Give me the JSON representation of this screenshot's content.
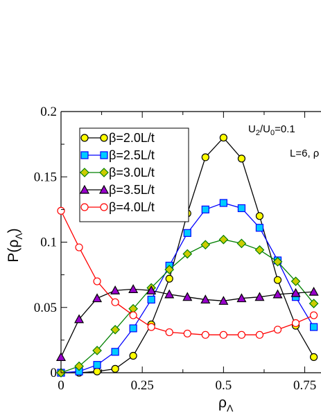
{
  "chart_data": {
    "type": "line",
    "xlabel": "ρΛ",
    "ylabel": "P(ρΛ)",
    "xlim": [
      0,
      0.8
    ],
    "ylim": [
      0,
      0.2
    ],
    "x_ticks": [
      "0",
      "0.25",
      "0.5",
      "0.75"
    ],
    "y_ticks": [
      "0",
      "0.05",
      "0.1",
      "0.15",
      "0.2"
    ],
    "annotations": [
      "U2/U0=0.1",
      "L=6, ρ"
    ],
    "legend_position": "top-left",
    "x": [
      0,
      0.0556,
      0.1111,
      0.1667,
      0.2222,
      0.2778,
      0.3333,
      0.3889,
      0.4444,
      0.5,
      0.5556,
      0.6111,
      0.6667,
      0.7222,
      0.7778
    ],
    "series": [
      {
        "name": "β=2.0L/t",
        "marker": "circle",
        "color": "#000000",
        "fill": "#ffff00",
        "values": [
          0.0,
          0.0,
          0.001,
          0.003,
          0.013,
          0.037,
          0.072,
          0.122,
          0.165,
          0.18,
          0.164,
          0.12,
          0.071,
          0.036,
          0.012
        ]
      },
      {
        "name": "β=2.5L/t",
        "marker": "square",
        "color": "#0000ff",
        "fill": "#00ccff",
        "values": [
          0.0,
          0.001,
          0.006,
          0.016,
          0.034,
          0.056,
          0.082,
          0.107,
          0.125,
          0.13,
          0.126,
          0.111,
          0.086,
          0.058,
          0.035
        ]
      },
      {
        "name": "β=3.0L/t",
        "marker": "diamond",
        "color": "#008000",
        "fill": "#cccc00",
        "values": [
          0.0,
          0.005,
          0.017,
          0.033,
          0.049,
          0.065,
          0.079,
          0.091,
          0.098,
          0.102,
          0.099,
          0.094,
          0.085,
          0.07,
          0.053
        ]
      },
      {
        "name": "β=3.5L/t",
        "marker": "triangle",
        "color": "#000000",
        "fill": "#9900cc",
        "values": [
          0.012,
          0.041,
          0.057,
          0.063,
          0.064,
          0.063,
          0.06,
          0.058,
          0.056,
          0.055,
          0.057,
          0.058,
          0.06,
          0.061,
          0.062
        ]
      },
      {
        "name": "β=4.0L/t",
        "marker": "circle",
        "color": "#ff0000",
        "fill": "#ffffff",
        "values": [
          0.124,
          0.096,
          0.07,
          0.054,
          0.044,
          0.035,
          0.031,
          0.03,
          0.029,
          0.029,
          0.029,
          0.029,
          0.033,
          0.038,
          0.044
        ]
      }
    ]
  }
}
